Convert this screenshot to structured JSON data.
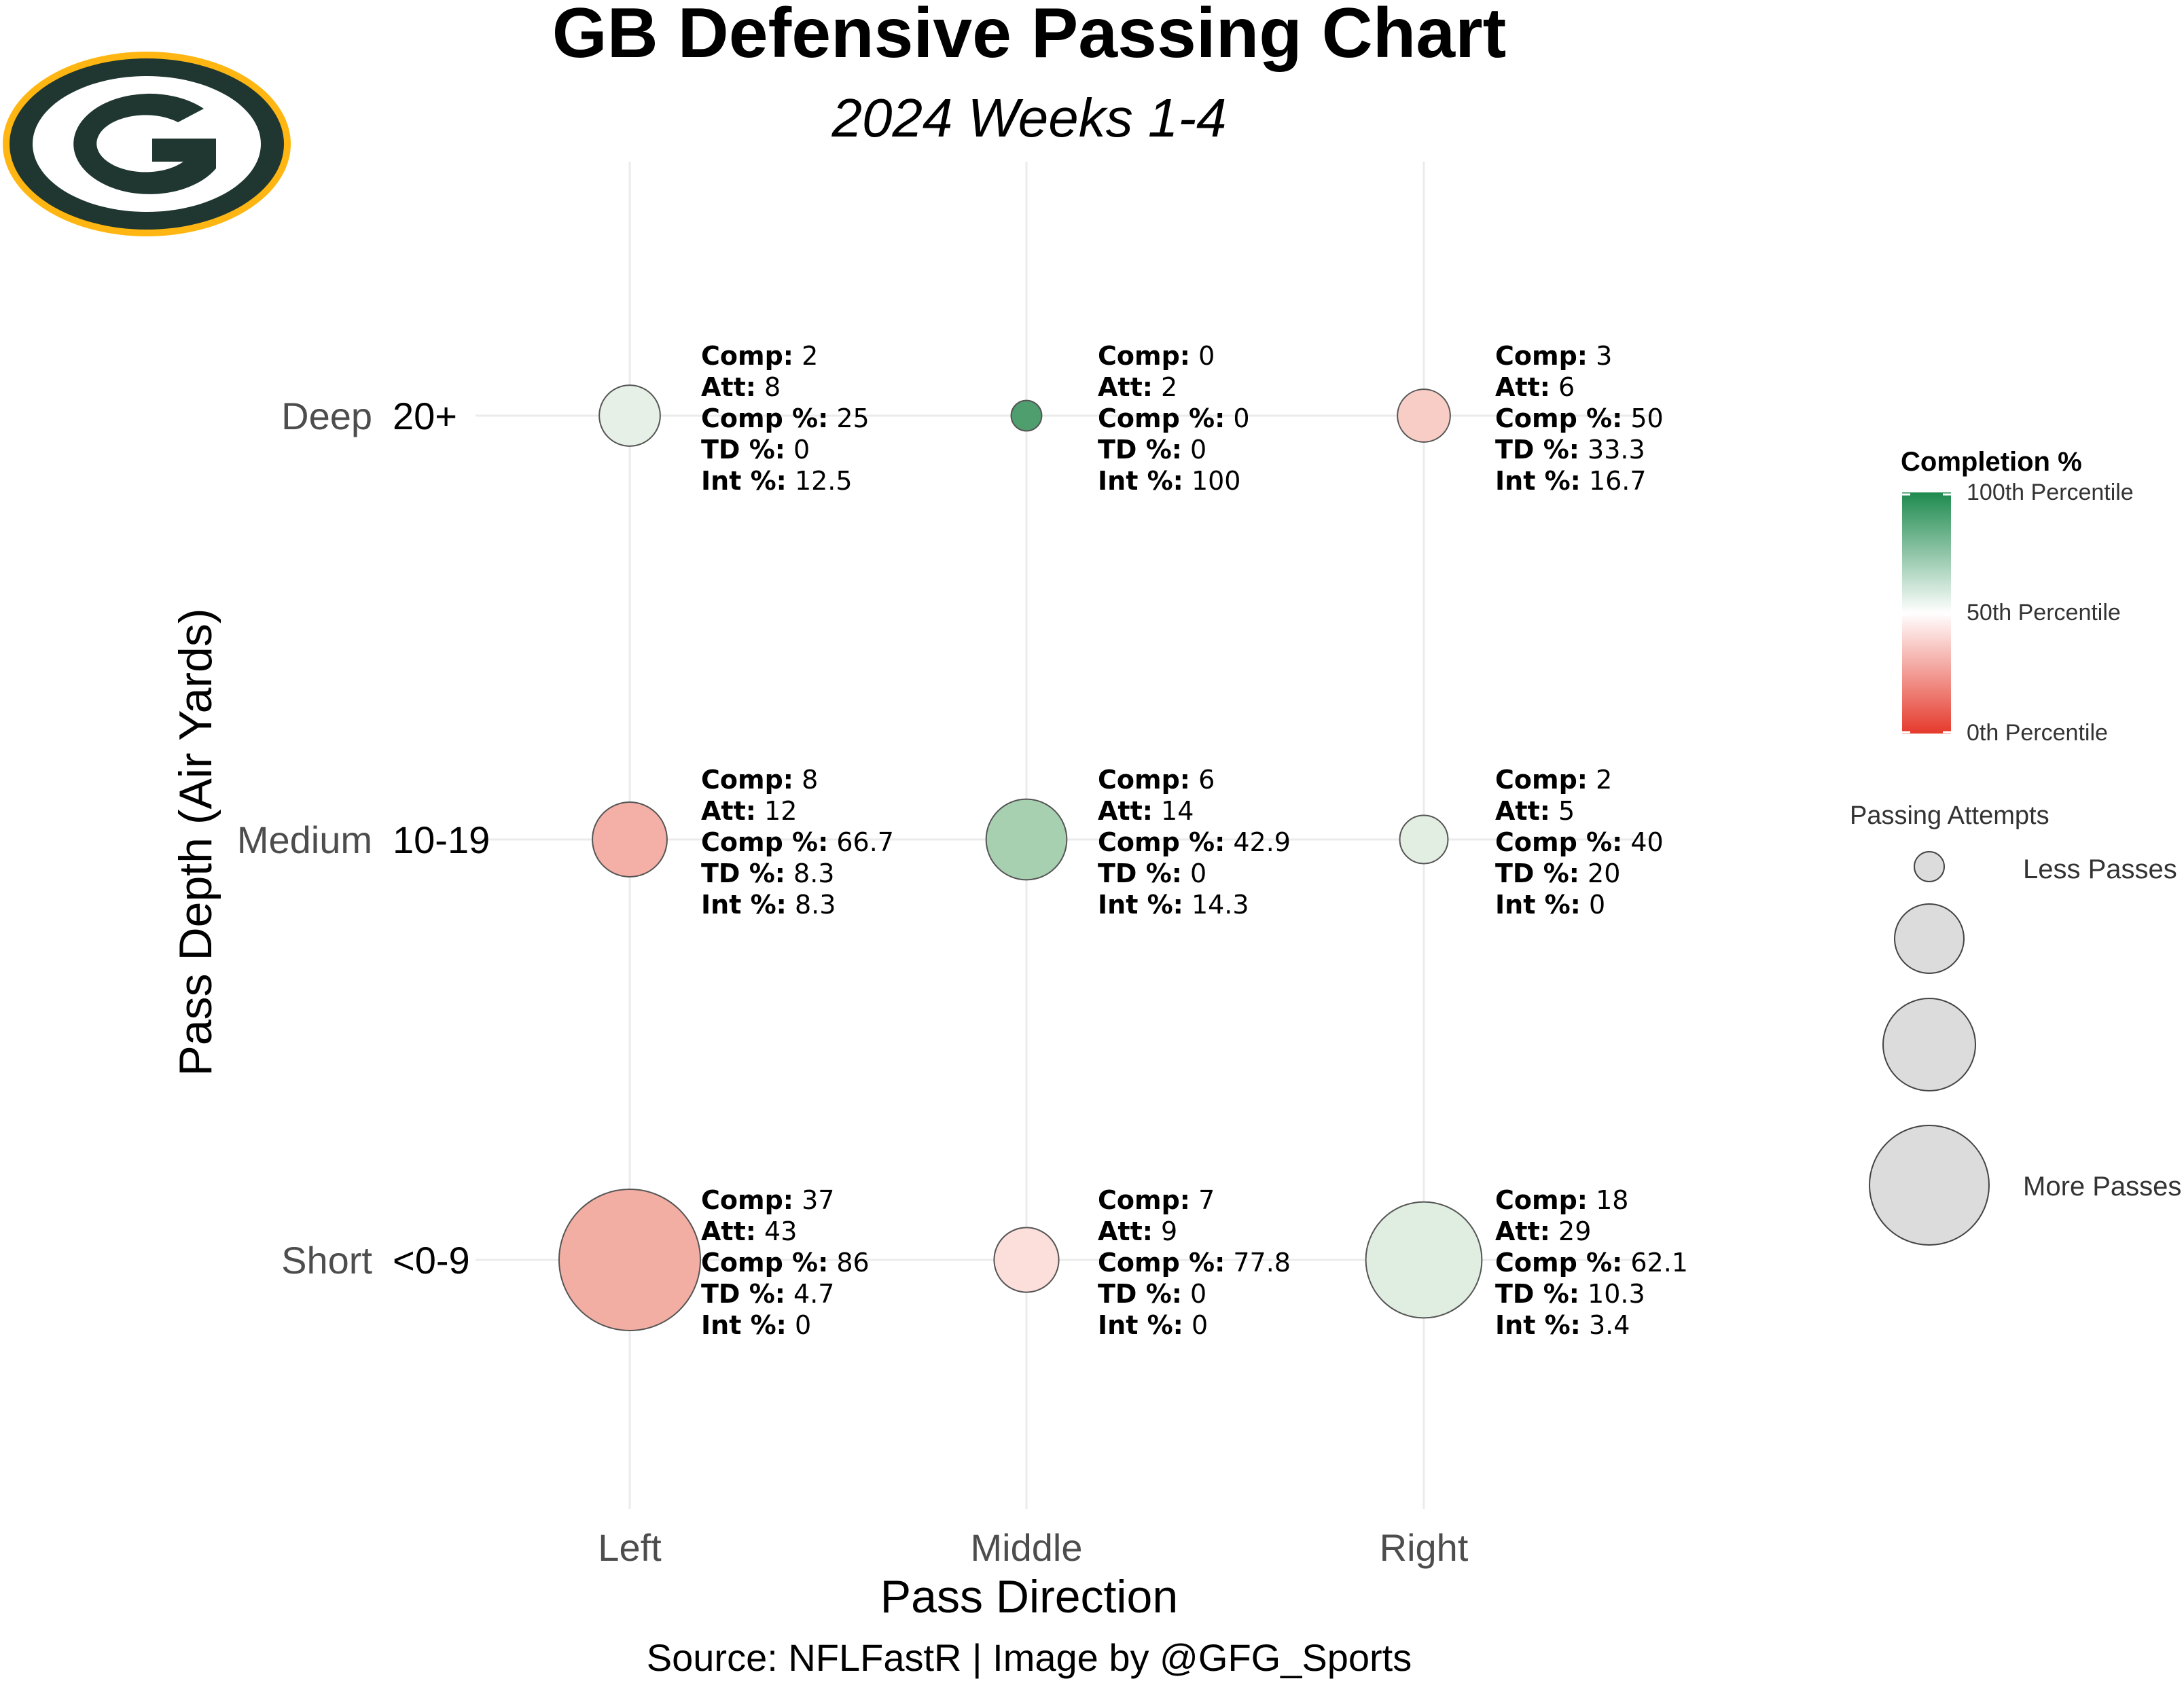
{
  "header": {
    "title": "GB Defensive Passing Chart",
    "subtitle": "2024 Weeks 1-4"
  },
  "logo": {
    "name": "green-bay-packers-logo",
    "colors": {
      "green": "#203731",
      "gold": "#FFB612",
      "white": "#ffffff"
    }
  },
  "footer": {
    "source": "Source: NFLFastR | Image by @GFG_Sports"
  },
  "chart_data": {
    "type": "scatter",
    "title": "GB Defensive Passing Chart",
    "subtitle": "2024 Weeks 1-4",
    "xlabel": "Pass Direction",
    "ylabel": "Pass Depth (Air Yards)",
    "x_categories": [
      "Left",
      "Middle",
      "Right"
    ],
    "y_categories": [
      {
        "name": "Short",
        "range": "<0-9"
      },
      {
        "name": "Medium",
        "range": "10-19"
      },
      {
        "name": "Deep",
        "range": "20+"
      }
    ],
    "grid": true,
    "point_labels": {
      "comp": "Comp:",
      "att": "Att:",
      "comp_pct": "Comp %:",
      "td_pct": "TD %:",
      "int_pct": "Int %:"
    },
    "points": [
      {
        "x": "Left",
        "y": "Deep",
        "comp": "2",
        "att": "8",
        "comp_pct": "25",
        "td_pct": "0",
        "int_pct": "12.5",
        "fill": "#e6f0e7"
      },
      {
        "x": "Middle",
        "y": "Deep",
        "comp": "0",
        "att": "2",
        "comp_pct": "0",
        "td_pct": "0",
        "int_pct": "100",
        "fill": "#4f9e6e"
      },
      {
        "x": "Right",
        "y": "Deep",
        "comp": "3",
        "att": "6",
        "comp_pct": "50",
        "td_pct": "33.3",
        "int_pct": "16.7",
        "fill": "#f8cdc6"
      },
      {
        "x": "Left",
        "y": "Medium",
        "comp": "8",
        "att": "12",
        "comp_pct": "66.7",
        "td_pct": "8.3",
        "int_pct": "8.3",
        "fill": "#f4b0a6"
      },
      {
        "x": "Middle",
        "y": "Medium",
        "comp": "6",
        "att": "14",
        "comp_pct": "42.9",
        "td_pct": "0",
        "int_pct": "14.3",
        "fill": "#a7d0b1"
      },
      {
        "x": "Right",
        "y": "Medium",
        "comp": "2",
        "att": "5",
        "comp_pct": "40",
        "td_pct": "20",
        "int_pct": "0",
        "fill": "#e2eee1"
      },
      {
        "x": "Left",
        "y": "Short",
        "comp": "37",
        "att": "43",
        "comp_pct": "86",
        "td_pct": "4.7",
        "int_pct": "0",
        "fill": "#f3aea3"
      },
      {
        "x": "Middle",
        "y": "Short",
        "comp": "7",
        "att": "9",
        "comp_pct": "77.8",
        "td_pct": "0",
        "int_pct": "0",
        "fill": "#fcdfda"
      },
      {
        "x": "Right",
        "y": "Short",
        "comp": "18",
        "att": "29",
        "comp_pct": "62.1",
        "td_pct": "10.3",
        "int_pct": "3.4",
        "fill": "#dfeee0"
      }
    ],
    "legend_color": {
      "title": "Completion %",
      "labels": [
        "100th Percentile",
        "50th Percentile",
        "0th Percentile"
      ],
      "colors": [
        "#1e8a4e",
        "#ffffff",
        "#e53a2c"
      ]
    },
    "legend_size": {
      "title": "Passing Attempts",
      "labels": [
        "Less Passes",
        "More Passes"
      ],
      "fill": "#dcdcdc"
    }
  }
}
